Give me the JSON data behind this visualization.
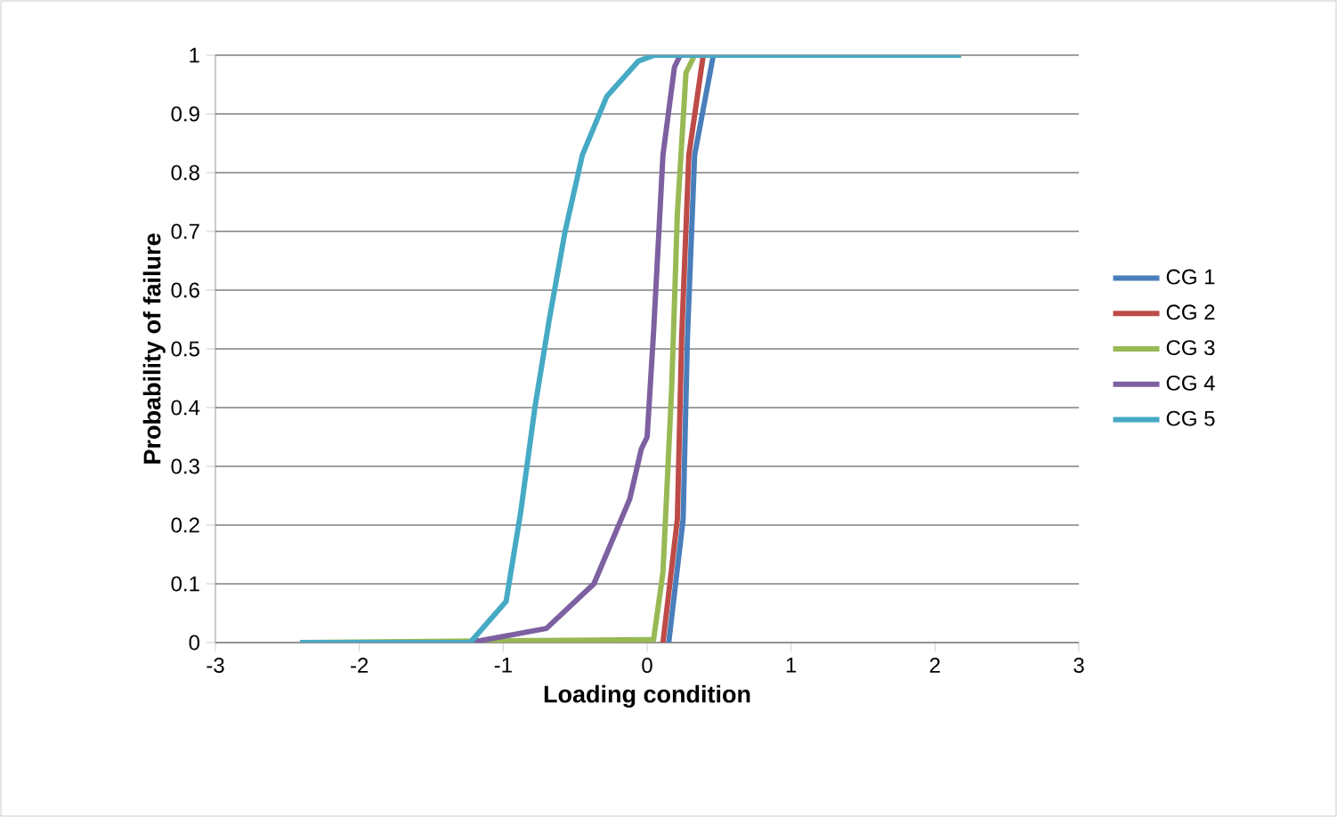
{
  "chart_data": {
    "type": "line",
    "xlabel": "Loading condition",
    "ylabel": "Probability of failure",
    "xlim": [
      -3,
      3
    ],
    "xticks": [
      -3,
      -2,
      -1,
      0,
      1,
      2,
      3
    ],
    "ylim": [
      0,
      1
    ],
    "yticks": [
      0,
      0.1,
      0.2,
      0.3,
      0.4,
      0.5,
      0.6,
      0.7,
      0.8,
      0.9,
      1
    ],
    "grid": "y",
    "legend": "right",
    "marker": "none",
    "line_style": "solid",
    "series": [
      {
        "name": "CG 1",
        "color": "#4a7ebb",
        "x": [
          0.15,
          0.25,
          0.28,
          0.33,
          0.46
        ],
        "values": [
          0,
          0.21,
          0.52,
          0.83,
          1
        ]
      },
      {
        "name": "CG 2",
        "color": "#be4b48",
        "x": [
          0.11,
          0.21,
          0.24,
          0.29,
          0.39
        ],
        "values": [
          0,
          0.21,
          0.52,
          0.83,
          1
        ]
      },
      {
        "name": "CG 3",
        "color": "#98b954",
        "x": [
          -2.41,
          0.0,
          0.045,
          0.11,
          0.17,
          0.21,
          0.27,
          0.33,
          2.18
        ],
        "values": [
          0,
          0.005,
          0.005,
          0.12,
          0.43,
          0.73,
          0.97,
          1,
          1
        ]
      },
      {
        "name": "CG 4",
        "color": "#7d60a0",
        "x": [
          -2.41,
          -1.23,
          -0.7,
          -0.37,
          -0.12,
          -0.04,
          0.0,
          0.045,
          0.11,
          0.19,
          0.23,
          2.18
        ],
        "values": [
          0,
          0,
          0.024,
          0.1,
          0.245,
          0.33,
          0.35,
          0.53,
          0.83,
          0.98,
          1,
          1
        ]
      },
      {
        "name": "CG 5",
        "color": "#46aac5",
        "x": [
          -2.41,
          -1.23,
          -0.98,
          -0.88,
          -0.78,
          -0.68,
          -0.57,
          -0.45,
          -0.28,
          -0.06,
          0.05,
          2.18
        ],
        "values": [
          0,
          0,
          0.07,
          0.22,
          0.4,
          0.55,
          0.7,
          0.83,
          0.93,
          0.99,
          1,
          1
        ]
      }
    ]
  }
}
